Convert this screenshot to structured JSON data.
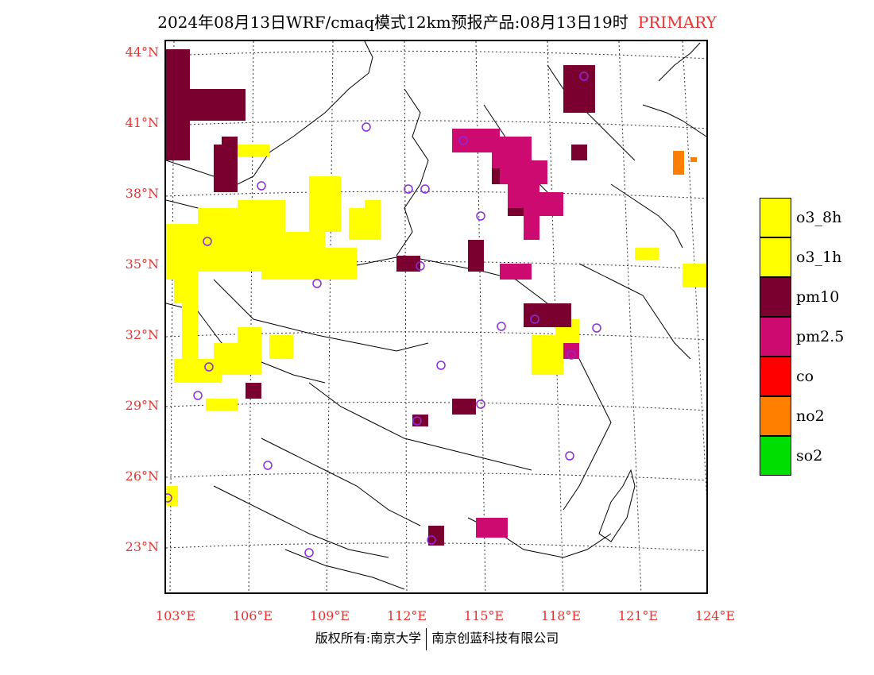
{
  "title": {
    "main": "2024年08月13日WRF/cmaq模式12km预报产品:08月13日19时",
    "tag": "PRIMARY"
  },
  "axes": {
    "lat_labels": [
      "44°N",
      "41°N",
      "38°N",
      "35°N",
      "32°N",
      "29°N",
      "26°N",
      "23°N"
    ],
    "lon_labels": [
      "103°E",
      "106°E",
      "109°E",
      "112°E",
      "115°E",
      "118°E",
      "121°E",
      "124°E"
    ]
  },
  "legend": [
    {
      "label": "o3_8h",
      "color": "#ffff00"
    },
    {
      "label": "o3_1h",
      "color": "#ffff00"
    },
    {
      "label": "pm10",
      "color": "#7a0030"
    },
    {
      "label": "pm2.5",
      "color": "#cc0a70"
    },
    {
      "label": "co",
      "color": "#ff0000"
    },
    {
      "label": "no2",
      "color": "#ff7f00"
    },
    {
      "label": "so2",
      "color": "#00dd00"
    }
  ],
  "footer": {
    "left": "版权所有:南京大学",
    "right": "南京创蓝科技有限公司"
  },
  "colors": {
    "o3": "#ffff00",
    "pm10": "#7a0030",
    "pm25": "#cc0a70",
    "no2": "#ff7f00",
    "station": "#8a2be2",
    "label_red": "#e8322f"
  }
}
